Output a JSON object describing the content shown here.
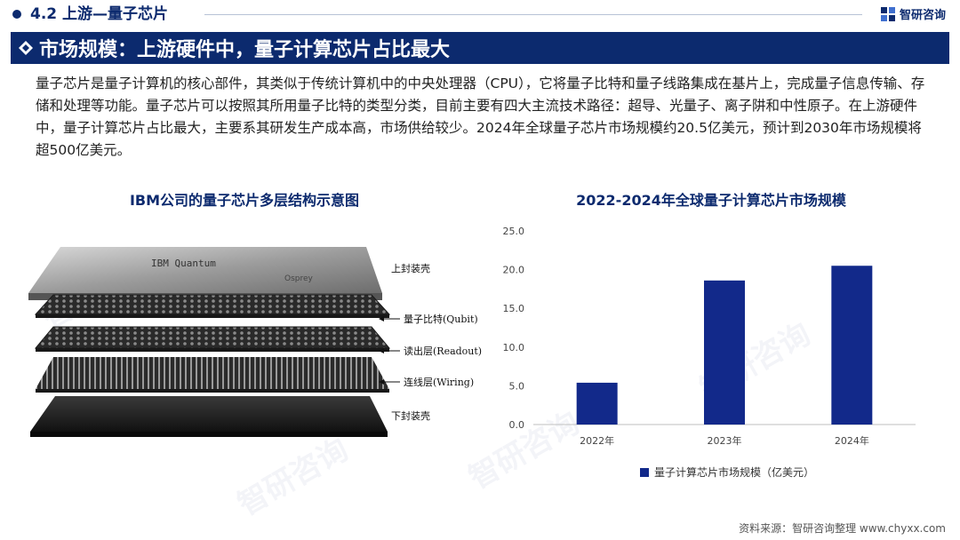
{
  "header": {
    "section": "4.2 上游—量子芯片",
    "brand": "智研咨询"
  },
  "title": "市场规模：上游硬件中，量子计算芯片占比最大",
  "intro": "量子芯片是量子计算机的核心部件，其类似于传统计算机中的中央处理器（CPU），它将量子比特和量子线路集成在基片上，完成量子信息传输、存储和处理等功能。量子芯片可以按照其所用量子比特的类型分类，目前主要有四大主流技术路径：超导、光量子、离子阱和中性原子。在上游硬件中，量子计算芯片占比最大，主要系其研发生产成本高，市场供给较少。2024年全球量子芯片市场规模约20.5亿美元，预计到2030年市场规模将超500亿美元。",
  "left_figure": {
    "title": "IBM公司的量子芯片多层结构示意图",
    "chip_brand": "IBM Quantum",
    "chip_model": "Osprey",
    "layers": [
      {
        "label": "上封装壳",
        "arrow": false
      },
      {
        "label": "量子比特(Qubit)",
        "arrow": true
      },
      {
        "label": "读出层(Readout)",
        "arrow": true
      },
      {
        "label": "连线层(Wiring)",
        "arrow": true
      },
      {
        "label": "下封装壳",
        "arrow": false
      }
    ]
  },
  "chart_data": {
    "type": "bar",
    "title": "2022-2024年全球量子计算芯片市场规模",
    "categories": [
      "2022年",
      "2023年",
      "2024年"
    ],
    "series": [
      {
        "name": "量子计算芯片市场规模（亿美元）",
        "values": [
          5.4,
          18.6,
          20.5
        ],
        "color": "#12298a"
      }
    ],
    "yticks": [
      "0.0",
      "5.0",
      "10.0",
      "15.0",
      "20.0",
      "25.0"
    ],
    "ylim": [
      0,
      25
    ],
    "grid": false,
    "legend": "bottom"
  },
  "source": "资料来源：智研咨询整理 www.chyxx.com",
  "watermark": "智研咨询"
}
